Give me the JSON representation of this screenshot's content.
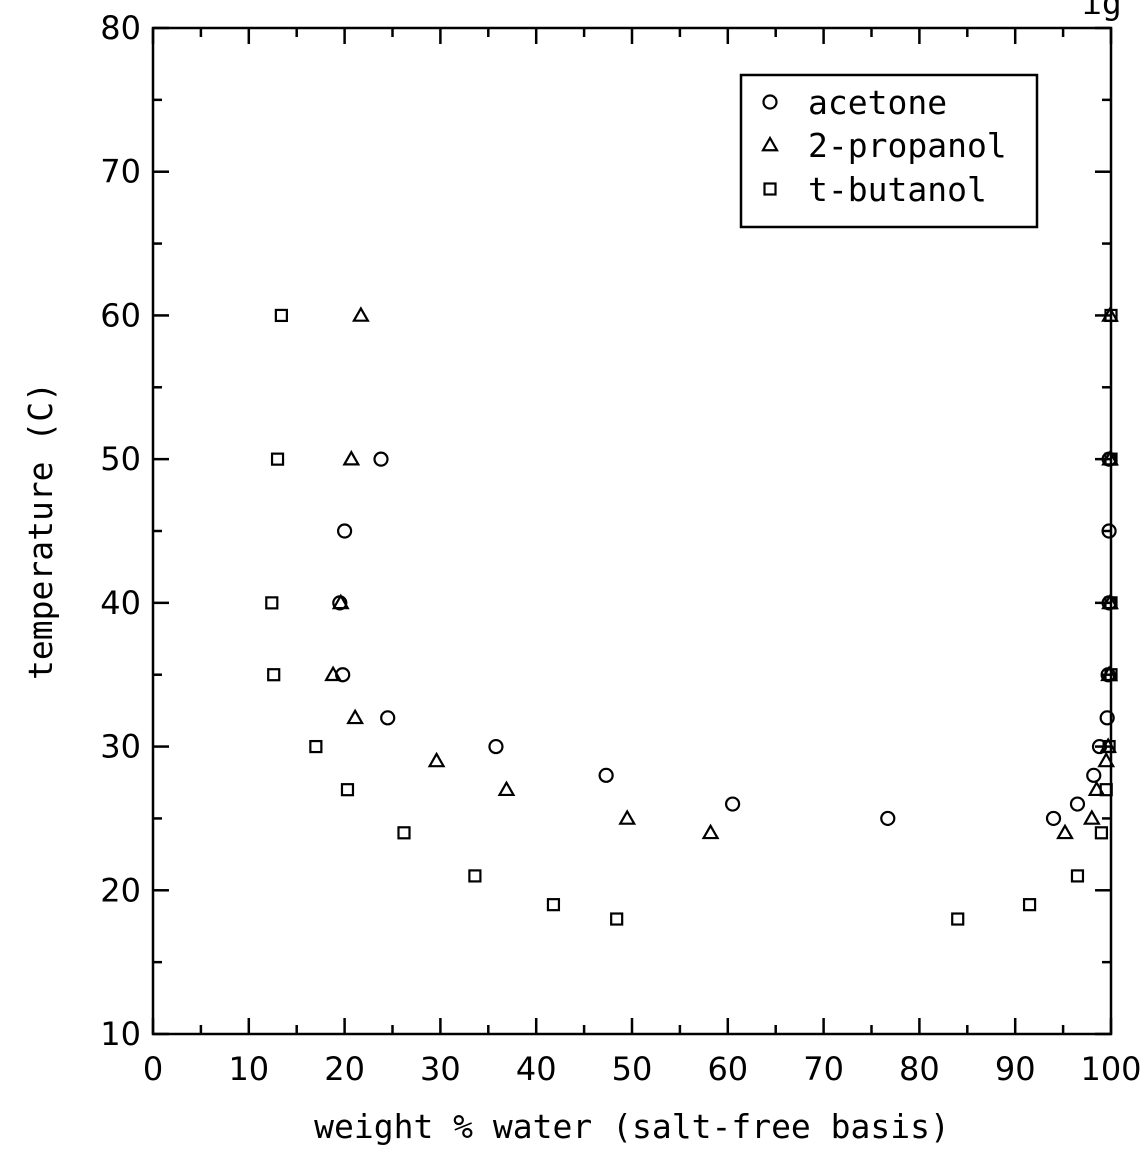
{
  "chart_data": {
    "type": "scatter",
    "xlabel": "weight % water (salt-free basis)",
    "ylabel": "temperature (C)",
    "xlim": [
      0,
      100
    ],
    "ylim": [
      10,
      80
    ],
    "x_ticks": [
      "0",
      "10",
      "20",
      "30",
      "40",
      "50",
      "60",
      "70",
      "80",
      "90",
      "100"
    ],
    "y_ticks": [
      "10",
      "20",
      "30",
      "40",
      "50",
      "60",
      "70",
      "80"
    ],
    "grid": false,
    "legend_position": "top-right",
    "series": [
      {
        "name": "acetone",
        "marker": "circle",
        "points": [
          [
            23.8,
            50
          ],
          [
            20.0,
            45
          ],
          [
            19.5,
            40
          ],
          [
            19.8,
            35
          ],
          [
            24.5,
            32
          ],
          [
            35.8,
            30
          ],
          [
            47.3,
            28
          ],
          [
            60.5,
            26
          ],
          [
            76.7,
            25
          ],
          [
            94.0,
            25
          ],
          [
            96.5,
            26
          ],
          [
            98.2,
            28
          ],
          [
            98.8,
            30
          ],
          [
            99.6,
            32
          ],
          [
            99.7,
            35
          ],
          [
            99.8,
            40
          ],
          [
            99.8,
            45
          ],
          [
            99.8,
            50
          ]
        ]
      },
      {
        "name": "2-propanol",
        "marker": "triangle",
        "points": [
          [
            21.7,
            60
          ],
          [
            20.7,
            50
          ],
          [
            19.6,
            40
          ],
          [
            18.8,
            35
          ],
          [
            21.1,
            32
          ],
          [
            29.6,
            29
          ],
          [
            36.9,
            27
          ],
          [
            49.5,
            25
          ],
          [
            58.2,
            24
          ],
          [
            95.2,
            24
          ],
          [
            98.0,
            25
          ],
          [
            98.5,
            27
          ],
          [
            99.5,
            29
          ],
          [
            99.7,
            30
          ],
          [
            99.8,
            35
          ],
          [
            99.9,
            40
          ],
          [
            99.9,
            50
          ],
          [
            99.9,
            60
          ]
        ]
      },
      {
        "name": "t-butanol",
        "marker": "square",
        "points": [
          [
            13.4,
            60
          ],
          [
            13.0,
            50
          ],
          [
            12.4,
            40
          ],
          [
            12.6,
            35
          ],
          [
            17.0,
            30
          ],
          [
            20.3,
            27
          ],
          [
            26.2,
            24
          ],
          [
            33.6,
            21
          ],
          [
            41.8,
            19
          ],
          [
            48.4,
            18
          ],
          [
            84.0,
            18
          ],
          [
            91.5,
            19
          ],
          [
            96.5,
            21
          ],
          [
            99.0,
            24
          ],
          [
            99.5,
            27
          ],
          [
            99.8,
            30
          ],
          [
            100.0,
            35
          ],
          [
            100.0,
            40
          ],
          [
            100.0,
            50
          ],
          [
            100.0,
            60
          ]
        ]
      }
    ],
    "header_fragment": "ig"
  }
}
